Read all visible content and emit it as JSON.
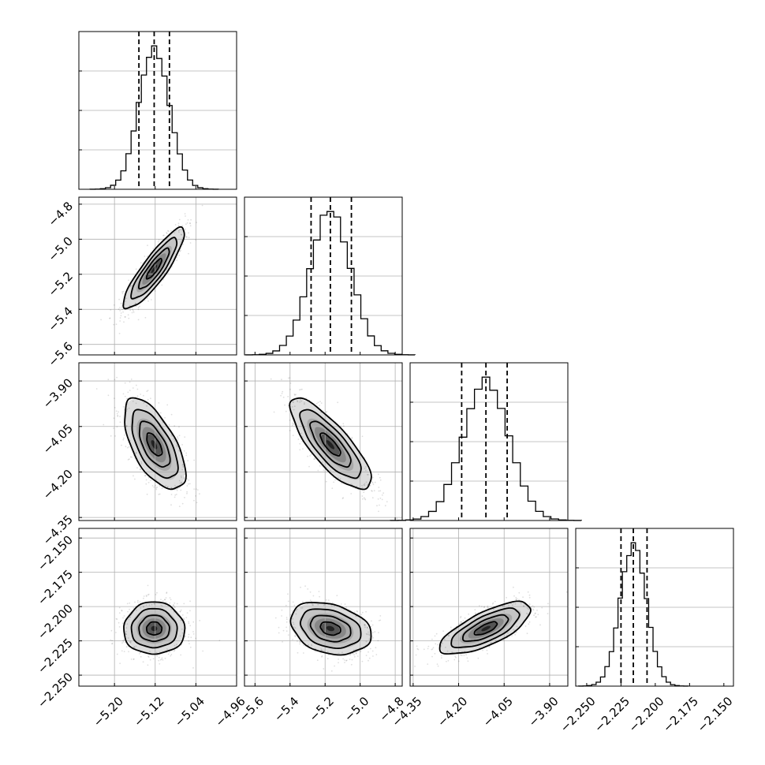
{
  "chart_data": {
    "type": "corner",
    "parameters": [
      {
        "center": -5.122,
        "q16": -5.152,
        "q84": -5.092,
        "sigma": 0.03,
        "range": [
          -5.27,
          -4.96
        ],
        "ticks": [
          -5.2,
          -5.12,
          -5.04,
          -4.96
        ],
        "tick_labels": [
          "−5.20",
          "−5.12",
          "−5.04",
          "−4.96"
        ]
      },
      {
        "center": -5.17,
        "q16": -5.28,
        "q84": -5.05,
        "sigma": 0.115,
        "range": [
          -5.66,
          -4.76
        ],
        "ticks": [
          -5.6,
          -5.4,
          -5.2,
          -5.0,
          -4.8
        ],
        "tick_labels": [
          "−5.6",
          "−5.4",
          "−5.2",
          "−5.0",
          "−4.8"
        ]
      },
      {
        "center": -4.11,
        "q16": -4.19,
        "q84": -4.04,
        "sigma": 0.075,
        "range": [
          -4.36,
          -3.84
        ],
        "ticks": [
          -4.35,
          -4.2,
          -4.05,
          -3.9
        ],
        "tick_labels": [
          "−4.35",
          "−4.20",
          "−4.05",
          "−3.90"
        ]
      },
      {
        "center": -2.216,
        "q16": -2.225,
        "q84": -2.206,
        "sigma": 0.0095,
        "range": [
          -2.258,
          -2.143
        ],
        "ticks": [
          -2.25,
          -2.225,
          -2.2,
          -2.175,
          -2.15
        ],
        "tick_labels": [
          "−2.250",
          "−2.225",
          "−2.200",
          "−2.175",
          "−2.150"
        ]
      }
    ],
    "correlations": {
      "1-0": 0.88,
      "2-0": -0.62,
      "2-1": -0.8,
      "3-0": 0.0,
      "3-1": -0.28,
      "3-2": 0.72
    },
    "histogram_bins": 25,
    "quantiles": [
      0.16,
      0.5,
      0.84
    ],
    "grid": true,
    "colors": {
      "ink": "#000000",
      "grid": "#b0b0b0",
      "background": "#ffffff"
    }
  }
}
